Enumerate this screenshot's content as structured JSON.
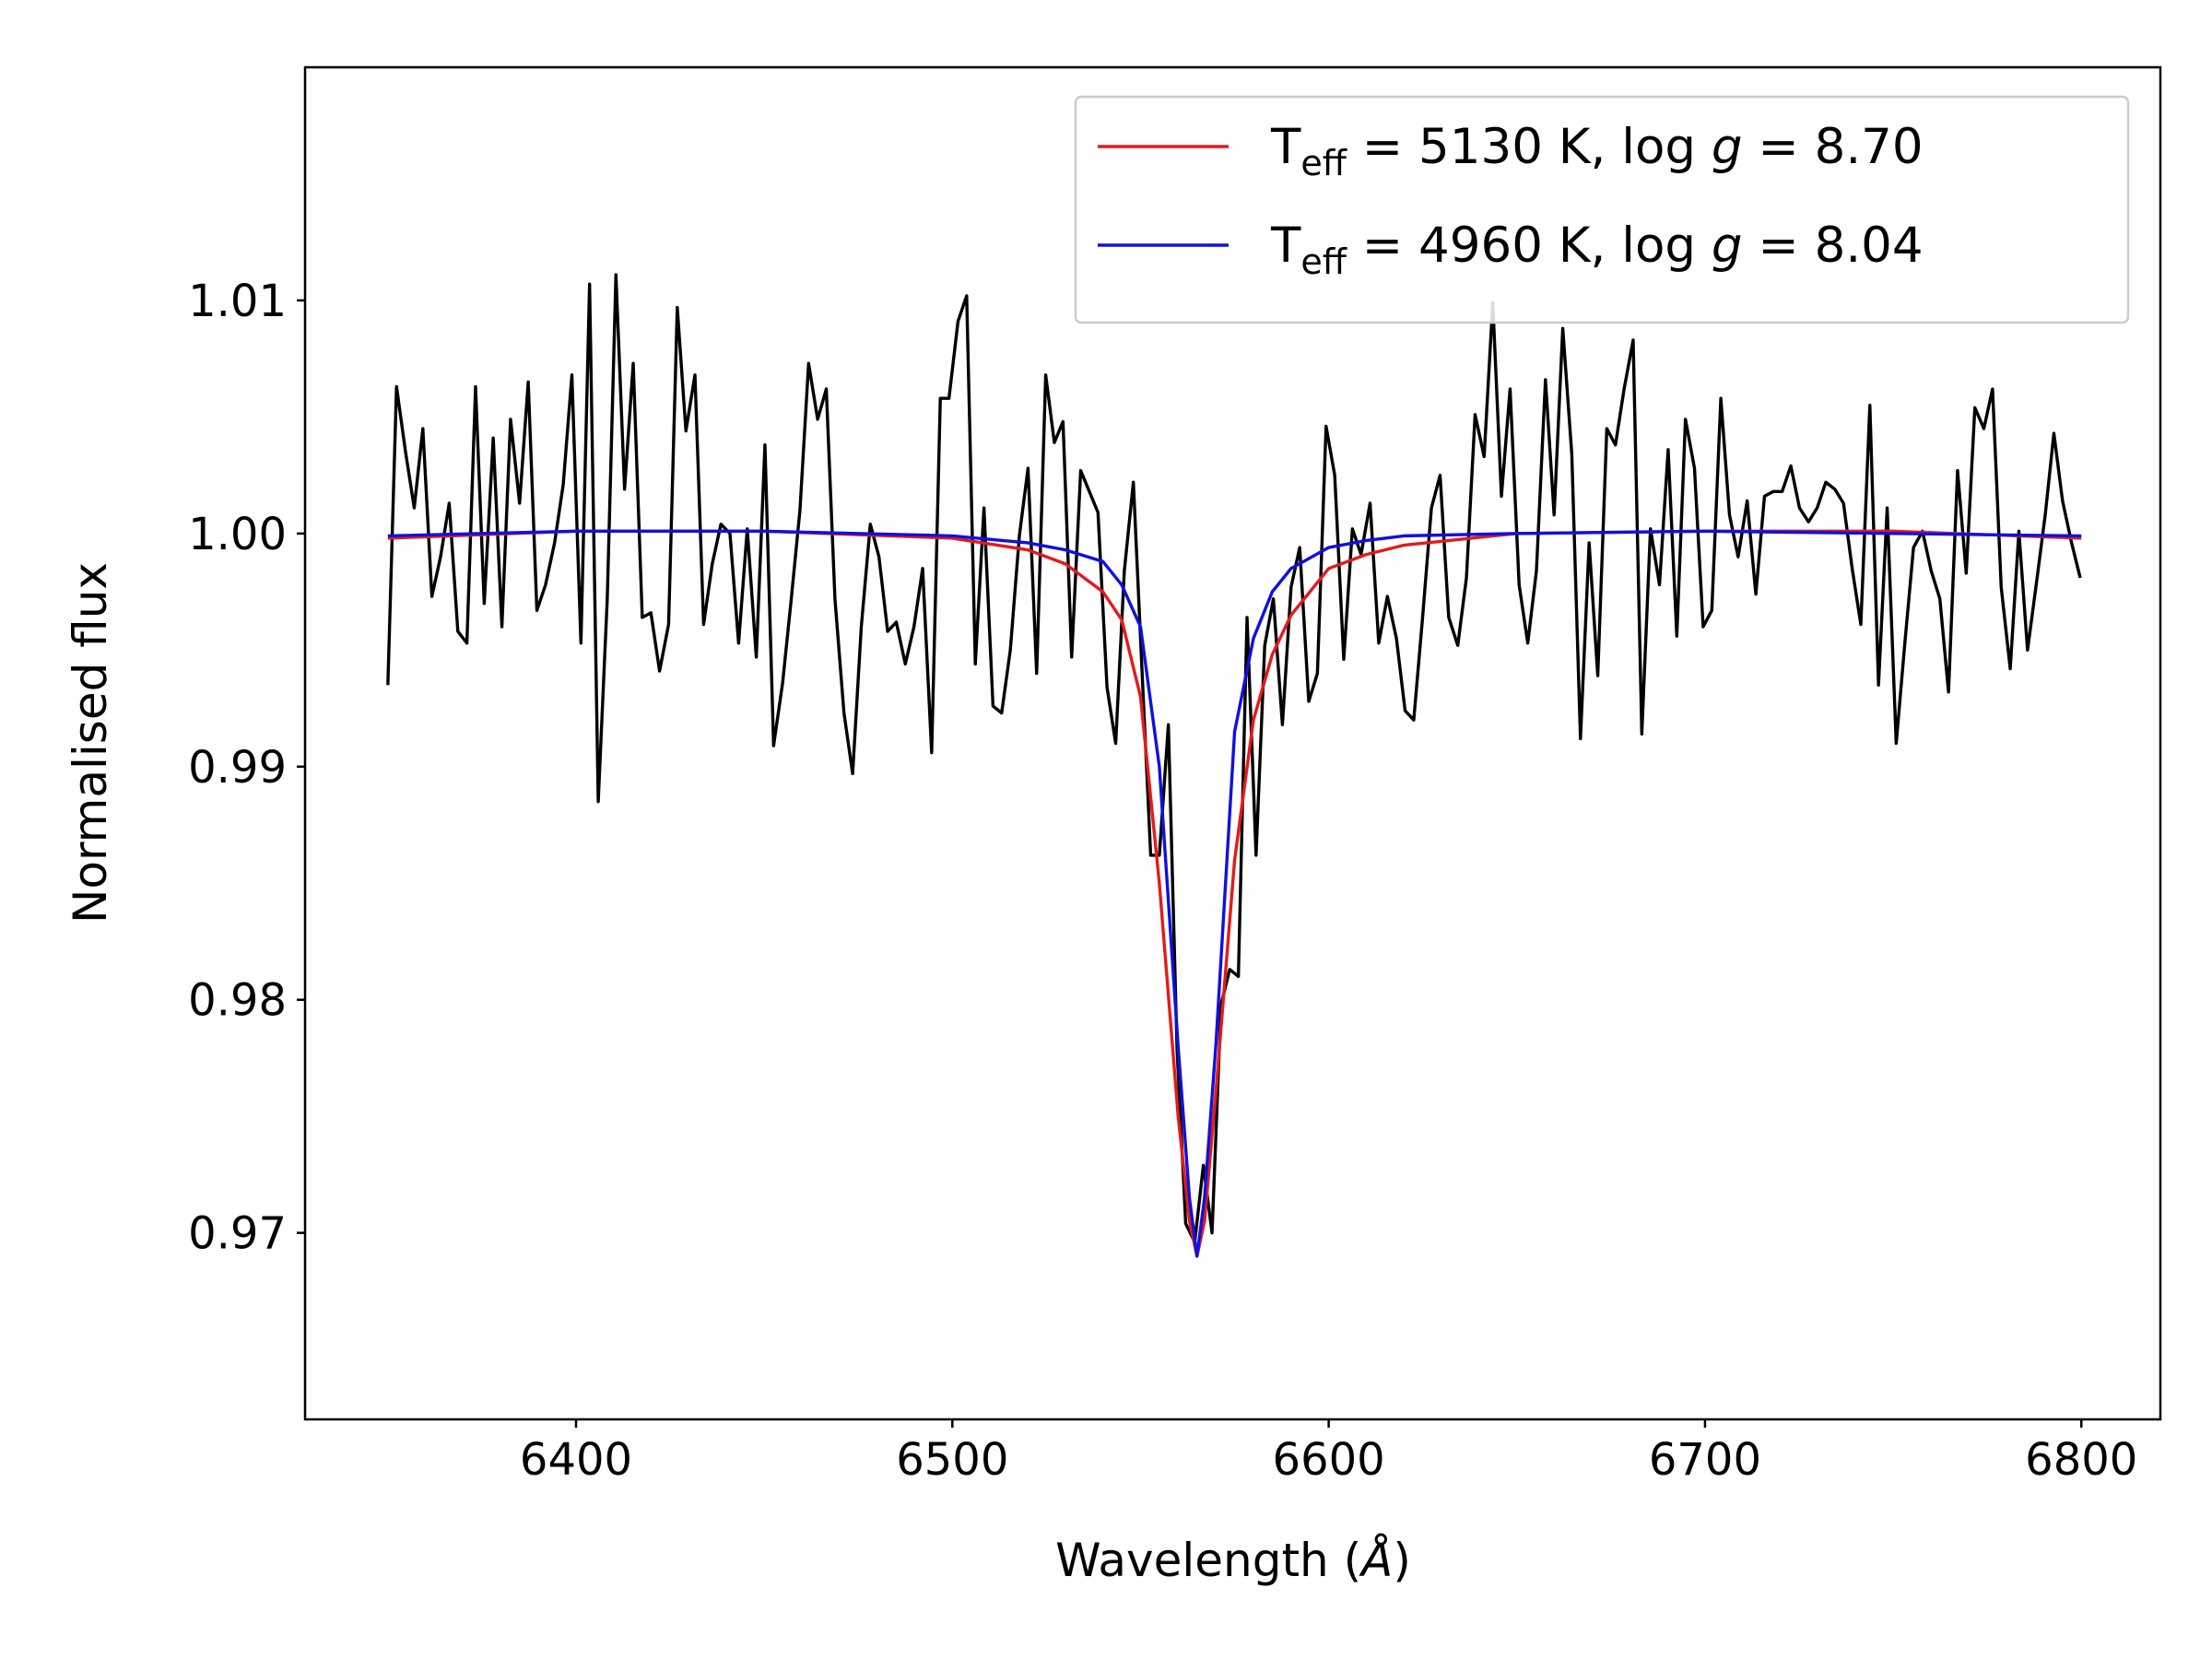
{
  "chart_data": {
    "type": "line",
    "xlabel": "Wavelength (Å)",
    "ylabel": "Normalised flux",
    "xlim": [
      6328,
      6821
    ],
    "ylim": [
      0.962,
      1.02
    ],
    "xticks": [
      6400,
      6500,
      6600,
      6700,
      6800
    ],
    "yticks": [
      0.97,
      0.98,
      0.99,
      {
        "value": 1.0,
        "label": "1.00"
      },
      1.01
    ],
    "grid": false,
    "legend": "upper right",
    "series": [
      {
        "color": "#000000",
        "x": [
          6350,
          6352.3,
          6354.7,
          6357.0,
          6359.3,
          6361.7,
          6364.0,
          6366.3,
          6368.6,
          6371.0,
          6373.3,
          6375.6,
          6378.0,
          6380.3,
          6382.6,
          6385.0,
          6387.3,
          6389.6,
          6391.9,
          6394.3,
          6396.6,
          6398.9,
          6401.3,
          6403.6,
          6405.9,
          6408.3,
          6410.6,
          6412.9,
          6415.2,
          6417.6,
          6419.9,
          6422.2,
          6424.6,
          6426.9,
          6429.2,
          6431.6,
          6433.9,
          6436.2,
          6438.5,
          6440.9,
          6443.2,
          6445.5,
          6447.9,
          6450.2,
          6452.5,
          6454.9,
          6457.2,
          6459.5,
          6461.8,
          6464.2,
          6466.5,
          6468.8,
          6471.2,
          6473.5,
          6475.8,
          6478.2,
          6480.5,
          6482.8,
          6485.1,
          6487.5,
          6489.8,
          6492.1,
          6494.5,
          6496.8,
          6499.1,
          6501.5,
          6503.8,
          6506.1,
          6508.4,
          6510.8,
          6513.1,
          6515.4,
          6517.8,
          6520.1,
          6522.4,
          6524.8,
          6527.1,
          6529.4,
          6531.7,
          6534.1,
          6536.4,
          6538.7,
          6541.1,
          6543.4,
          6545.7,
          6548.1,
          6550.4,
          6552.7,
          6555.0,
          6557.4,
          6559.7,
          6562.0,
          6564.4,
          6566.7,
          6569.0,
          6571.4,
          6573.7,
          6576.0,
          6578.3,
          6580.7,
          6583.0,
          6585.3,
          6587.7,
          6590.0,
          6592.3,
          6594.7,
          6597.0,
          6599.3,
          6601.6,
          6604.0,
          6606.3,
          6608.6,
          6611.0,
          6613.3,
          6615.6,
          6618.0,
          6620.3,
          6622.6,
          6624.9,
          6627.3,
          6629.6,
          6631.9,
          6634.3,
          6636.6,
          6638.9,
          6641.3,
          6643.6,
          6645.9,
          6648.2,
          6650.6,
          6652.9,
          6655.2,
          6657.6,
          6659.9,
          6662.2,
          6664.6,
          6666.9,
          6669.2,
          6671.5,
          6673.9,
          6676.2,
          6678.5,
          6680.9,
          6683.2,
          6685.5,
          6687.9,
          6690.2,
          6692.5,
          6694.8,
          6697.2,
          6699.5,
          6701.8,
          6704.2,
          6706.5,
          6708.8,
          6711.2,
          6713.5,
          6715.8,
          6718.1,
          6720.5,
          6722.8,
          6725.1,
          6727.5,
          6729.8,
          6732.1,
          6734.5,
          6736.8,
          6739.1,
          6741.4,
          6743.8,
          6746.1,
          6748.4,
          6750.8,
          6753.1,
          6755.4,
          6757.8,
          6760.1,
          6762.4,
          6764.7,
          6767.1,
          6769.4,
          6771.7,
          6774.1,
          6776.4,
          6778.7,
          6781.1,
          6783.4,
          6785.7,
          6788.0,
          6790.4,
          6792.7,
          6795.0,
          6797.4,
          6799.7
        ],
        "values": [
          0.9935,
          1.0063,
          1.0035,
          1.0011,
          1.0045,
          0.9973,
          0.999,
          1.0013,
          0.9958,
          0.9953,
          1.0063,
          0.997,
          1.0041,
          0.996,
          1.0049,
          1.0013,
          1.0065,
          0.9967,
          0.9978,
          0.9996,
          1.0021,
          1.0068,
          0.9953,
          1.0107,
          0.9885,
          0.9972,
          1.0111,
          1.0019,
          1.0073,
          0.9964,
          0.9966,
          0.9941,
          0.9961,
          1.0097,
          1.0044,
          1.0068,
          0.9961,
          0.9987,
          1.0004,
          1.0,
          0.9953,
          1.0002,
          0.9947,
          1.0038,
          0.9909,
          0.9936,
          0.9972,
          1.001,
          1.0073,
          1.0049,
          1.0062,
          0.9972,
          0.9923,
          0.9897,
          0.996,
          1.0004,
          0.999,
          0.9958,
          0.9962,
          0.9944,
          0.996,
          0.9985,
          0.9906,
          1.0058,
          1.0058,
          1.0091,
          1.0102,
          0.9944,
          1.0011,
          0.9926,
          0.9923,
          0.995,
          0.9999,
          1.0028,
          0.994,
          1.0068,
          1.0039,
          1.0048,
          0.9947,
          1.0027,
          1.0018,
          1.0009,
          0.9934,
          0.991,
          0.9984,
          1.0022,
          0.9941,
          0.9862,
          0.9862,
          0.9918,
          0.9779,
          0.9704,
          0.9696,
          0.9729,
          0.97,
          0.9798,
          0.9813,
          0.981,
          0.9964,
          0.9862,
          0.9952,
          0.9972,
          0.9918,
          0.9977,
          0.9994,
          0.9928,
          0.994,
          1.0046,
          1.0025,
          0.9946,
          1.0002,
          0.9991,
          1.0013,
          0.9953,
          0.9973,
          0.9955,
          0.9924,
          0.992,
          0.9963,
          1.0011,
          1.0025,
          0.9964,
          0.9952,
          0.9981,
          1.0051,
          1.0033,
          1.0099,
          1.0016,
          1.0062,
          0.9978,
          0.9953,
          0.9984,
          1.0066,
          1.0008,
          1.0088,
          1.0034,
          0.9912,
          0.9996,
          0.9939,
          1.0045,
          1.0038,
          1.0062,
          1.0083,
          0.9914,
          1.0002,
          0.9978,
          1.0036,
          0.9956,
          1.0049,
          1.0028,
          0.996,
          0.9967,
          1.0058,
          1.0008,
          0.999,
          1.0014,
          0.9974,
          1.0016,
          1.0018,
          1.0018,
          1.0029,
          1.0011,
          1.0005,
          1.0011,
          1.0022,
          1.0019,
          1.0013,
          0.9985,
          0.9961,
          1.0055,
          0.9935,
          1.0011,
          0.991,
          0.9953,
          0.9994,
          1.0001,
          0.9984,
          0.9972,
          0.9932,
          1.0027,
          0.9983,
          1.0054,
          1.0045,
          1.0062,
          0.9977,
          0.9942,
          1.0001,
          0.995,
          0.9978,
          1.0008,
          1.0043,
          1.0014,
          0.9996,
          0.9981
        ]
      },
      {
        "name": "Teff = 5130 K, log g = 8.70",
        "color": "#e41a1c",
        "x": [
          6350,
          6400,
          6450,
          6500,
          6520,
          6530,
          6540,
          6545,
          6550,
          6555,
          6560,
          6563,
          6565,
          6567,
          6570,
          6575,
          6580,
          6585,
          6590,
          6600,
          6610,
          6620,
          6650,
          6700,
          6750,
          6800
        ],
        "values": [
          0.9998,
          1.0001,
          1.0001,
          0.9998,
          0.9993,
          0.9987,
          0.9975,
          0.9963,
          0.993,
          0.985,
          0.975,
          0.9705,
          0.969,
          0.9705,
          0.976,
          0.986,
          0.992,
          0.9948,
          0.9965,
          0.9985,
          0.9991,
          0.9995,
          1.0,
          1.0001,
          1.0001,
          0.9998
        ]
      },
      {
        "name": "Teff = 4960 K, log g = 8.04",
        "color": "#1010e0",
        "x": [
          6350,
          6400,
          6450,
          6500,
          6520,
          6530,
          6540,
          6545,
          6550,
          6555,
          6560,
          6563,
          6565,
          6567,
          6570,
          6575,
          6580,
          6585,
          6590,
          6600,
          6610,
          6620,
          6650,
          6700,
          6750,
          6800
        ],
        "values": [
          0.9999,
          1.0001,
          1.0001,
          0.9999,
          0.9996,
          0.9993,
          0.9988,
          0.9978,
          0.996,
          0.99,
          0.978,
          0.9715,
          0.969,
          0.9715,
          0.978,
          0.9915,
          0.9955,
          0.9975,
          0.9985,
          0.9994,
          0.9997,
          0.9999,
          1.0,
          1.0001,
          1.0,
          0.9999
        ]
      }
    ]
  }
}
